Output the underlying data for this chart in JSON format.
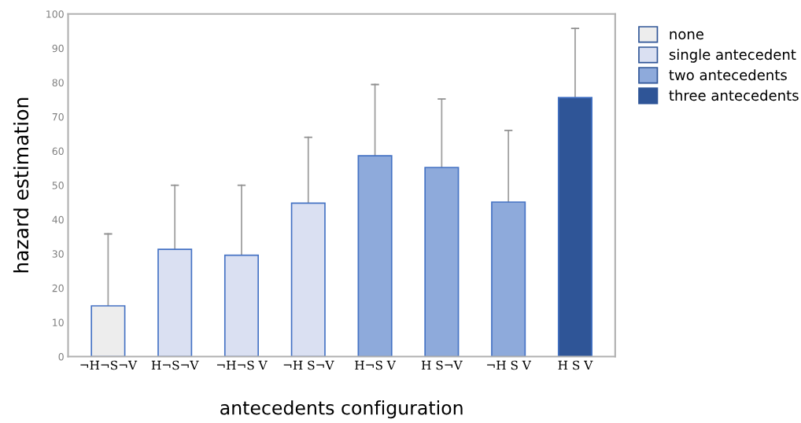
{
  "chart_data": {
    "type": "bar",
    "xlabel": "antecedents configuration",
    "ylabel": "hazard estimation",
    "categories": [
      "¬H¬S¬V",
      "H¬S¬V",
      "¬H¬S V",
      "¬H S¬V",
      "H¬S V",
      "H S¬V",
      "¬H S V",
      "H S V"
    ],
    "series": [
      {
        "name": "none",
        "color": "#ededed",
        "values": [
          14.8,
          null,
          null,
          null,
          null,
          null,
          null,
          null
        ],
        "errors": [
          [
            14.8,
            35.8
          ],
          null,
          null,
          null,
          null,
          null,
          null,
          null
        ]
      },
      {
        "name": "single antecedent",
        "color": "#dae0f2",
        "values": [
          null,
          31.3,
          29.6,
          44.8,
          null,
          null,
          null,
          null
        ],
        "errors": [
          null,
          [
            31.3,
            50
          ],
          [
            29.6,
            50
          ],
          [
            44.8,
            64
          ],
          null,
          null,
          null,
          null
        ]
      },
      {
        "name": "two antecedents",
        "color": "#8eaadb",
        "values": [
          null,
          null,
          null,
          null,
          58.6,
          55.2,
          45.1,
          null
        ],
        "errors": [
          null,
          null,
          null,
          null,
          [
            58.6,
            79.4
          ],
          [
            55.2,
            75.2
          ],
          [
            45.1,
            66
          ],
          null
        ]
      },
      {
        "name": "three antecedents",
        "color": "#2f5597",
        "values": [
          null,
          null,
          null,
          null,
          null,
          null,
          null,
          75.6
        ],
        "errors": [
          null,
          null,
          null,
          null,
          null,
          null,
          null,
          [
            75.6,
            95.8
          ]
        ]
      }
    ],
    "ylim": [
      0,
      100
    ],
    "yticks": [
      0,
      10,
      20,
      30,
      40,
      50,
      60,
      70,
      80,
      90,
      100
    ],
    "grid": false,
    "legend": "right"
  }
}
